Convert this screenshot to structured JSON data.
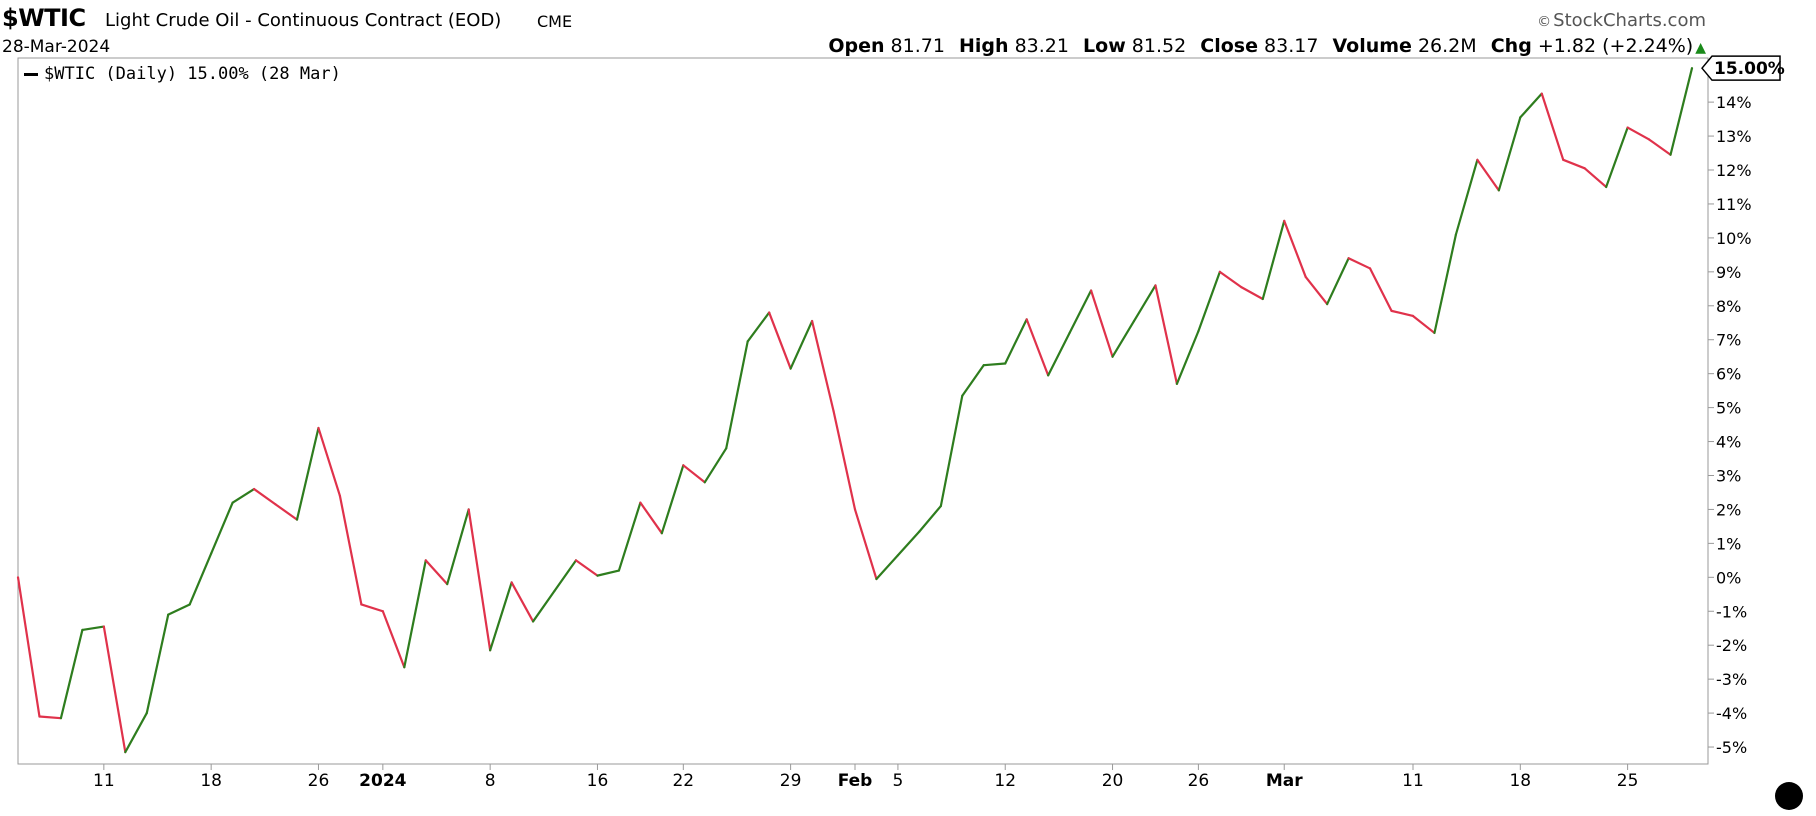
{
  "header": {
    "ticker": "$WTIC",
    "description": "Light Crude Oil - Continuous Contract (EOD)",
    "exchange": "CME",
    "date": "28-Mar-2024",
    "brand": "StockCharts.com",
    "brand_symbol": "©",
    "open_label": "Open",
    "open": "81.71",
    "high_label": "High",
    "high": "83.21",
    "low_label": "Low",
    "low": "81.52",
    "close_label": "Close",
    "close": "83.17",
    "volume_label": "Volume",
    "volume": "26.2M",
    "chg_label": "Chg",
    "chg": "+1.82 (+2.24%)",
    "chg_arrow": "▲"
  },
  "legend": {
    "label": "$WTIC (Daily) 15.00% (28 Mar)"
  },
  "chart_data": {
    "type": "line",
    "ylim": [
      -5.5,
      15.3
    ],
    "yticks": [
      -5,
      -4,
      -3,
      -2,
      -1,
      0,
      1,
      2,
      3,
      4,
      5,
      6,
      7,
      8,
      9,
      10,
      11,
      12,
      13,
      14
    ],
    "ytick_labels": [
      "-5%",
      "-4%",
      "-3%",
      "-2%",
      "-1%",
      "0%",
      "1%",
      "2%",
      "3%",
      "4%",
      "5%",
      "6%",
      "7%",
      "8%",
      "9%",
      "10%",
      "11%",
      "12%",
      "13%",
      "14%"
    ],
    "last_value_label": "15.00%",
    "xticks": [
      {
        "label": "11",
        "i": 4,
        "bold": false
      },
      {
        "label": "18",
        "i": 9,
        "bold": false
      },
      {
        "label": "26",
        "i": 14,
        "bold": false
      },
      {
        "label": "2024",
        "i": 17,
        "bold": true
      },
      {
        "label": "8",
        "i": 22,
        "bold": false
      },
      {
        "label": "16",
        "i": 27,
        "bold": false
      },
      {
        "label": "22",
        "i": 31,
        "bold": false
      },
      {
        "label": "29",
        "i": 36,
        "bold": false
      },
      {
        "label": "Feb",
        "i": 39,
        "bold": true
      },
      {
        "label": "5",
        "i": 41,
        "bold": false
      },
      {
        "label": "12",
        "i": 46,
        "bold": false
      },
      {
        "label": "20",
        "i": 51,
        "bold": false
      },
      {
        "label": "26",
        "i": 55,
        "bold": false
      },
      {
        "label": "Mar",
        "i": 59,
        "bold": true
      },
      {
        "label": "11",
        "i": 65,
        "bold": false
      },
      {
        "label": "18",
        "i": 70,
        "bold": false
      },
      {
        "label": "25",
        "i": 75,
        "bold": false
      }
    ],
    "up_color": "#2e7d1e",
    "down_color": "#e0324b",
    "series": [
      {
        "values": [
          0,
          -4.1,
          -4.15,
          -1.55,
          -1.45,
          -5.15,
          -4.0,
          -1.1,
          -0.8,
          0.7,
          2.2,
          2.6,
          2.15,
          1.7,
          4.4,
          2.4,
          -0.8,
          -1.0,
          -2.65,
          0.5,
          -0.2,
          2.0,
          -2.15,
          -0.15,
          -1.3,
          -0.4,
          0.5,
          0.05,
          0.2,
          2.2,
          1.3,
          3.3,
          2.8,
          3.8,
          6.95,
          7.8,
          6.15,
          7.55,
          4.9,
          2.0,
          -0.05,
          0.65,
          1.35,
          2.1,
          5.35,
          6.25,
          6.3,
          7.6,
          5.95,
          7.2,
          8.45,
          6.5,
          7.55,
          8.6,
          5.7,
          7.25,
          9.0,
          8.55,
          8.2,
          10.5,
          8.85,
          8.05,
          9.4,
          9.1,
          7.85,
          7.7,
          7.2,
          10.1,
          12.3,
          11.4,
          13.55,
          14.25,
          12.3,
          12.05,
          11.5,
          13.25,
          12.9,
          12.45,
          15.0
        ]
      }
    ]
  }
}
